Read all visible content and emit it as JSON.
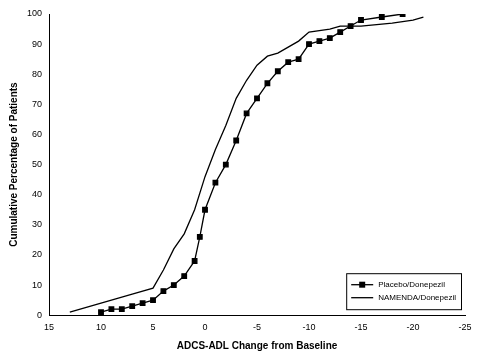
{
  "chart_data": {
    "type": "line",
    "x_label": "ADCS-ADL Change from Baseline",
    "y_label": "Cumulative Percentage of Patients",
    "xlim": [
      15,
      -25
    ],
    "xticks": [
      15,
      10,
      5,
      0,
      -5,
      -10,
      -15,
      -20,
      -25
    ],
    "ylim": [
      0,
      100
    ],
    "yticks": [
      0,
      10,
      20,
      30,
      40,
      50,
      60,
      70,
      80,
      90,
      100
    ],
    "grid": false,
    "legend": "lower right",
    "series": [
      {
        "name": "Placebo/Donepezil",
        "color": "#000000",
        "marker": "square",
        "line_style": "solid",
        "x": [
          10,
          9,
          8,
          7,
          6,
          5,
          4,
          3,
          2,
          1,
          0.5,
          0,
          -1,
          -2,
          -3,
          -4,
          -5,
          -6,
          -7,
          -8,
          -9,
          -10,
          -11,
          -12,
          -13,
          -14,
          -15,
          -17,
          -19
        ],
        "values": [
          1,
          2,
          2,
          3,
          4,
          5,
          8,
          10,
          13,
          18,
          26,
          35,
          44,
          50,
          58,
          67,
          72,
          77,
          81,
          84,
          85,
          90,
          91,
          92,
          94,
          96,
          98,
          99,
          100
        ]
      },
      {
        "name": "NAMENDA/Donepezil",
        "color": "#000000",
        "marker": "none",
        "line_style": "solid",
        "x": [
          13,
          10,
          7,
          5,
          4,
          3,
          2,
          1,
          0,
          -1,
          -2,
          -3,
          -4,
          -5,
          -6,
          -7,
          -8,
          -9,
          -10,
          -12,
          -13,
          -15,
          -18,
          -20,
          -21
        ],
        "values": [
          1,
          4,
          7,
          9,
          15,
          22,
          27,
          35,
          46,
          55,
          63,
          72,
          78,
          83,
          86,
          87,
          89,
          91,
          94,
          95,
          96,
          96,
          97,
          98,
          99
        ]
      }
    ]
  }
}
